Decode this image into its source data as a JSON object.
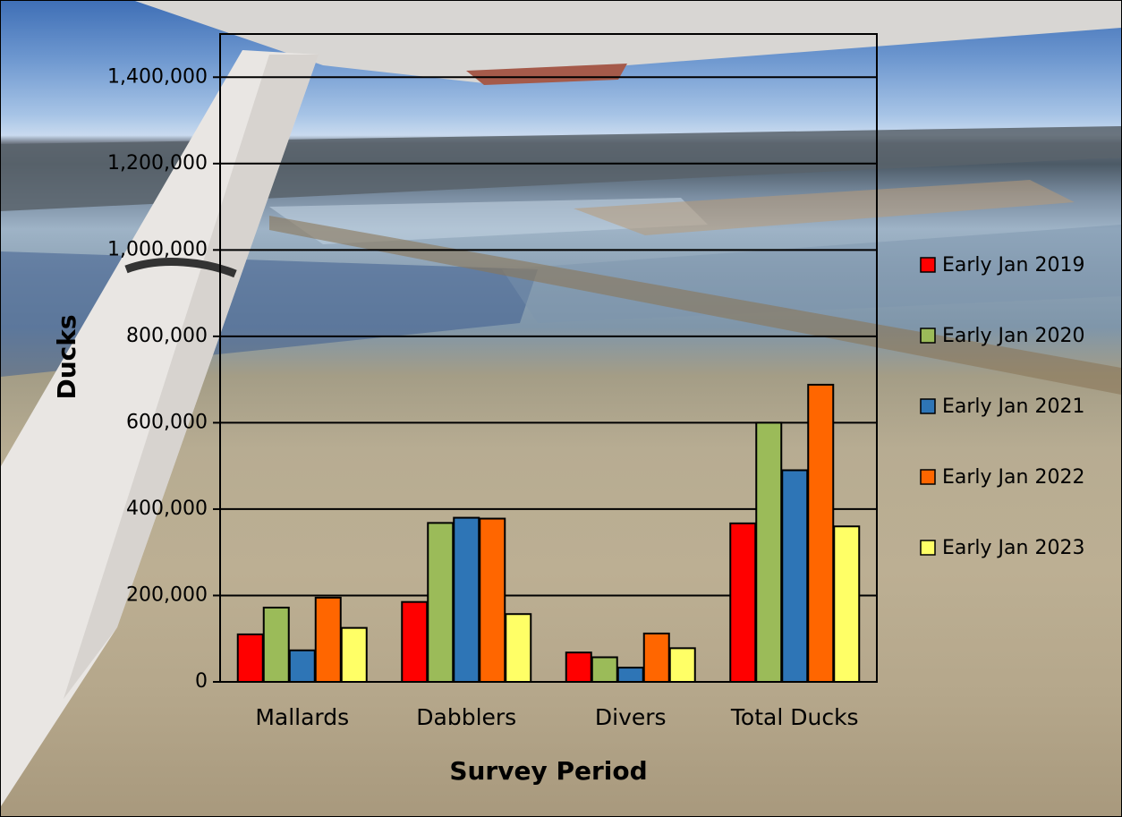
{
  "chart_data": {
    "type": "bar",
    "title": "",
    "xlabel": "Survey Period",
    "ylabel": "Ducks",
    "ylim": [
      0,
      1500000
    ],
    "yticks": [
      0,
      200000,
      400000,
      600000,
      800000,
      1000000,
      1200000,
      1400000
    ],
    "ytick_labels": [
      "0",
      "200,000",
      "400,000",
      "600,000",
      "800,000",
      "1,000,000",
      "1,200,000",
      "1,400,000"
    ],
    "grid": true,
    "legend_position": "right",
    "categories": [
      "Mallards",
      "Dabblers",
      "Divers",
      "Total Ducks"
    ],
    "series": [
      {
        "name": "Early Jan 2019",
        "color": "#ff0000",
        "values": [
          110000,
          185000,
          68000,
          367000
        ]
      },
      {
        "name": "Early Jan 2020",
        "color": "#9bbb59",
        "values": [
          172000,
          368000,
          57000,
          600000
        ]
      },
      {
        "name": "Early Jan 2021",
        "color": "#2e75b6",
        "values": [
          73000,
          380000,
          33000,
          490000
        ]
      },
      {
        "name": "Early Jan 2022",
        "color": "#ff6600",
        "values": [
          195000,
          378000,
          112000,
          688000
        ]
      },
      {
        "name": "Early Jan 2023",
        "color": "#ffff66",
        "values": [
          125000,
          157000,
          78000,
          360000
        ]
      }
    ]
  },
  "background": {
    "description_icon": "airplane-wing-over-flooded-fields-photo"
  }
}
